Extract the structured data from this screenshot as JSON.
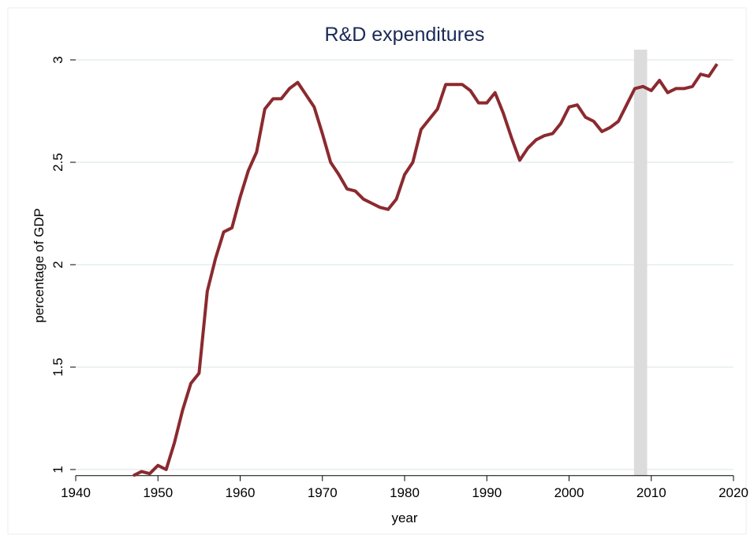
{
  "chart_data": {
    "type": "line",
    "title": "R&D expenditures",
    "x_label": "year",
    "y_label": "percentage of GDP",
    "x": [
      1947,
      1948,
      1949,
      1950,
      1951,
      1952,
      1953,
      1954,
      1955,
      1956,
      1957,
      1958,
      1959,
      1960,
      1961,
      1962,
      1963,
      1964,
      1965,
      1966,
      1967,
      1968,
      1969,
      1970,
      1971,
      1972,
      1973,
      1974,
      1975,
      1976,
      1977,
      1978,
      1979,
      1980,
      1981,
      1982,
      1983,
      1984,
      1985,
      1986,
      1987,
      1988,
      1989,
      1990,
      1991,
      1992,
      1993,
      1994,
      1995,
      1996,
      1997,
      1998,
      1999,
      2000,
      2001,
      2002,
      2003,
      2004,
      2005,
      2006,
      2007,
      2008,
      2009,
      2010,
      2011,
      2012,
      2013,
      2014,
      2015,
      2016,
      2017,
      2018
    ],
    "series": [
      {
        "name": "R&D",
        "color": "#8b2a2f",
        "values": [
          0.97,
          0.99,
          0.98,
          1.02,
          1.0,
          1.13,
          1.29,
          1.42,
          1.47,
          1.87,
          2.03,
          2.16,
          2.18,
          2.33,
          2.46,
          2.55,
          2.76,
          2.81,
          2.81,
          2.86,
          2.89,
          2.83,
          2.77,
          2.64,
          2.5,
          2.44,
          2.37,
          2.36,
          2.32,
          2.3,
          2.28,
          2.27,
          2.32,
          2.44,
          2.5,
          2.66,
          2.71,
          2.76,
          2.88,
          2.88,
          2.88,
          2.85,
          2.79,
          2.79,
          2.84,
          2.74,
          2.62,
          2.51,
          2.57,
          2.61,
          2.63,
          2.64,
          2.69,
          2.77,
          2.78,
          2.72,
          2.7,
          2.65,
          2.67,
          2.7,
          2.78,
          2.86,
          2.87,
          2.85,
          2.9,
          2.84,
          2.86,
          2.86,
          2.87,
          2.93,
          2.92,
          2.98
        ]
      }
    ],
    "shaded_regions": [
      [
        2007.9,
        2009.5
      ]
    ],
    "shade_color": "#dcdcdc",
    "xlim": [
      1940,
      2020
    ],
    "xticks": [
      1940,
      1950,
      1960,
      1970,
      1980,
      1990,
      2000,
      2010,
      2020
    ],
    "ylim": [
      0.97,
      3.05
    ],
    "yticks": [
      1,
      1.5,
      2,
      2.5,
      3
    ],
    "grid": true
  }
}
